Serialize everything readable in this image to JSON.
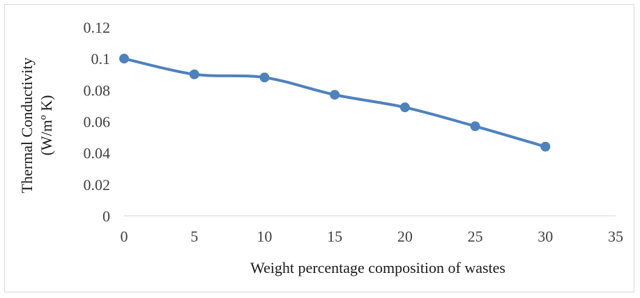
{
  "chart_data": {
    "type": "line",
    "title": "",
    "xlabel": "Weight percentage composition of wastes",
    "ylabel_lines": [
      "Thermal Conductivity",
      "(W/mº K)"
    ],
    "xlim": [
      0,
      35
    ],
    "ylim": [
      0,
      0.12
    ],
    "x_ticks": [
      0,
      5,
      10,
      15,
      20,
      25,
      30,
      35
    ],
    "y_ticks": [
      0,
      0.02,
      0.04,
      0.06,
      0.08,
      0.1,
      0.12
    ],
    "x_tick_labels": [
      "0",
      "5",
      "10",
      "15",
      "20",
      "25",
      "30",
      "35"
    ],
    "y_tick_labels": [
      "0",
      "0.02",
      "0.04",
      "0.06",
      "0.08",
      "0.1",
      "0.12"
    ],
    "grid": false,
    "smooth": true,
    "series": [
      {
        "x": [
          0,
          5,
          10,
          15,
          20,
          25,
          30
        ],
        "y": [
          0.1,
          0.09,
          0.088,
          0.077,
          0.069,
          0.057,
          0.044
        ],
        "color": "#4f81bd"
      }
    ]
  }
}
